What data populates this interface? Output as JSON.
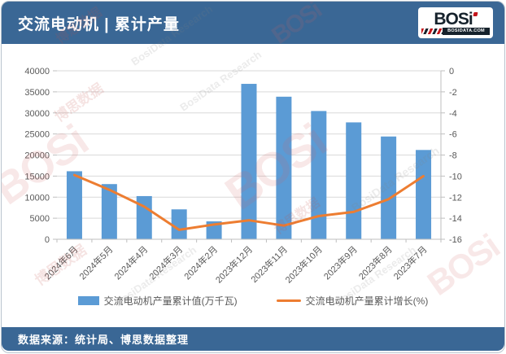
{
  "header": {
    "title": "交流电动机 | 累计产量",
    "logo": {
      "text": "BOSi",
      "site": "BOSIDATA.COM"
    }
  },
  "footer": {
    "source": "数据来源：统计局、博思数据整理"
  },
  "watermark": {
    "brand": "BOSi",
    "cn": "博思数据",
    "en": "BosiData Research"
  },
  "colors": {
    "header_bg": "#3A6795",
    "bar": "#5B9BD5",
    "line": "#ED7D31",
    "grid": "#D9D9D9",
    "axis": "#BFBFBF",
    "text": "#595959",
    "logo_navy": "#16222C",
    "logo_red": "#C4161C"
  },
  "chart_data": {
    "type": "bar",
    "title": "交流电动机 | 累计产量",
    "categories": [
      "2024年6月",
      "2024年5月",
      "2024年4月",
      "2024年3月",
      "2024年2月",
      "2023年12月",
      "2023年11月",
      "2023年10月",
      "2023年9月",
      "2023年8月",
      "2023年7月"
    ],
    "series": [
      {
        "name": "交流电动机产量累计值(万千瓦)",
        "type": "bar",
        "axis": "left",
        "values": [
          16150,
          13100,
          10250,
          7100,
          4250,
          36900,
          33850,
          30450,
          27750,
          24400,
          21200
        ]
      },
      {
        "name": "交流电动机产量累计增长(%)",
        "type": "line",
        "axis": "right",
        "values": [
          -9.9,
          -11.3,
          -12.9,
          -15.1,
          -14.6,
          -14.2,
          -14.7,
          -13.8,
          -13.4,
          -12.2,
          -10.0
        ]
      }
    ],
    "left_axis": {
      "min": 0,
      "max": 40000,
      "step": 5000
    },
    "right_axis": {
      "min": -16,
      "max": 0,
      "step": 2
    },
    "grid": true,
    "legend_position": "bottom"
  }
}
